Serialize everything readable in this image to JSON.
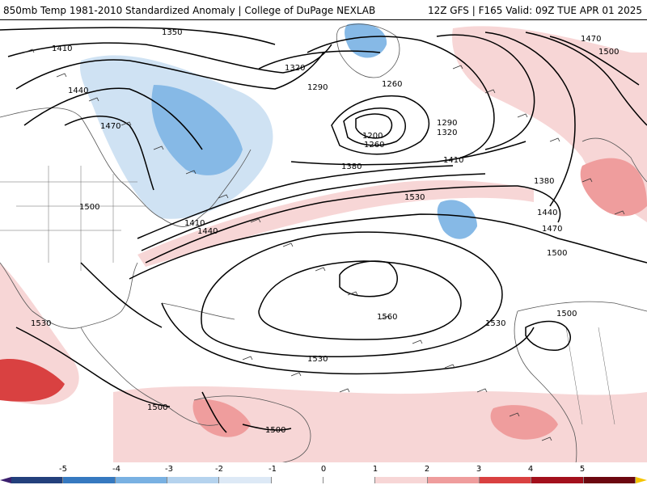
{
  "header": {
    "left_title": "850mb Temp 1981-2010 Standardized Anomaly | College of DuPage NEXLAB",
    "right_title": "12Z GFS | F165 Valid: 09Z TUE APR 01 2025"
  },
  "colorbar": {
    "tick_labels": [
      "-5",
      "-4",
      "-3",
      "-2",
      "-1",
      "0",
      "1",
      "2",
      "3",
      "4",
      "5"
    ],
    "colors": [
      "#3b1f6e",
      "#23407c",
      "#3679c0",
      "#79b1e2",
      "#b5d3ee",
      "#dde9f6",
      "#ffffff",
      "#ffffff",
      "#f7d6d6",
      "#ef9d9d",
      "#d94141",
      "#a3101c",
      "#6c0810",
      "#f5c400"
    ]
  },
  "contours": {
    "labels": [
      "1350",
      "1410",
      "1320",
      "1290",
      "1260",
      "1440",
      "1470",
      "1200",
      "1260",
      "1290",
      "1320",
      "1380",
      "1410",
      "1380",
      "1530",
      "1500",
      "1410",
      "1440",
      "1440",
      "1470",
      "1500",
      "1560",
      "1530",
      "1500",
      "1530",
      "1530",
      "1500",
      "1500",
      "1470",
      "1500"
    ]
  },
  "icons": {
    "wind_barbs": "wind-barb-icon"
  }
}
